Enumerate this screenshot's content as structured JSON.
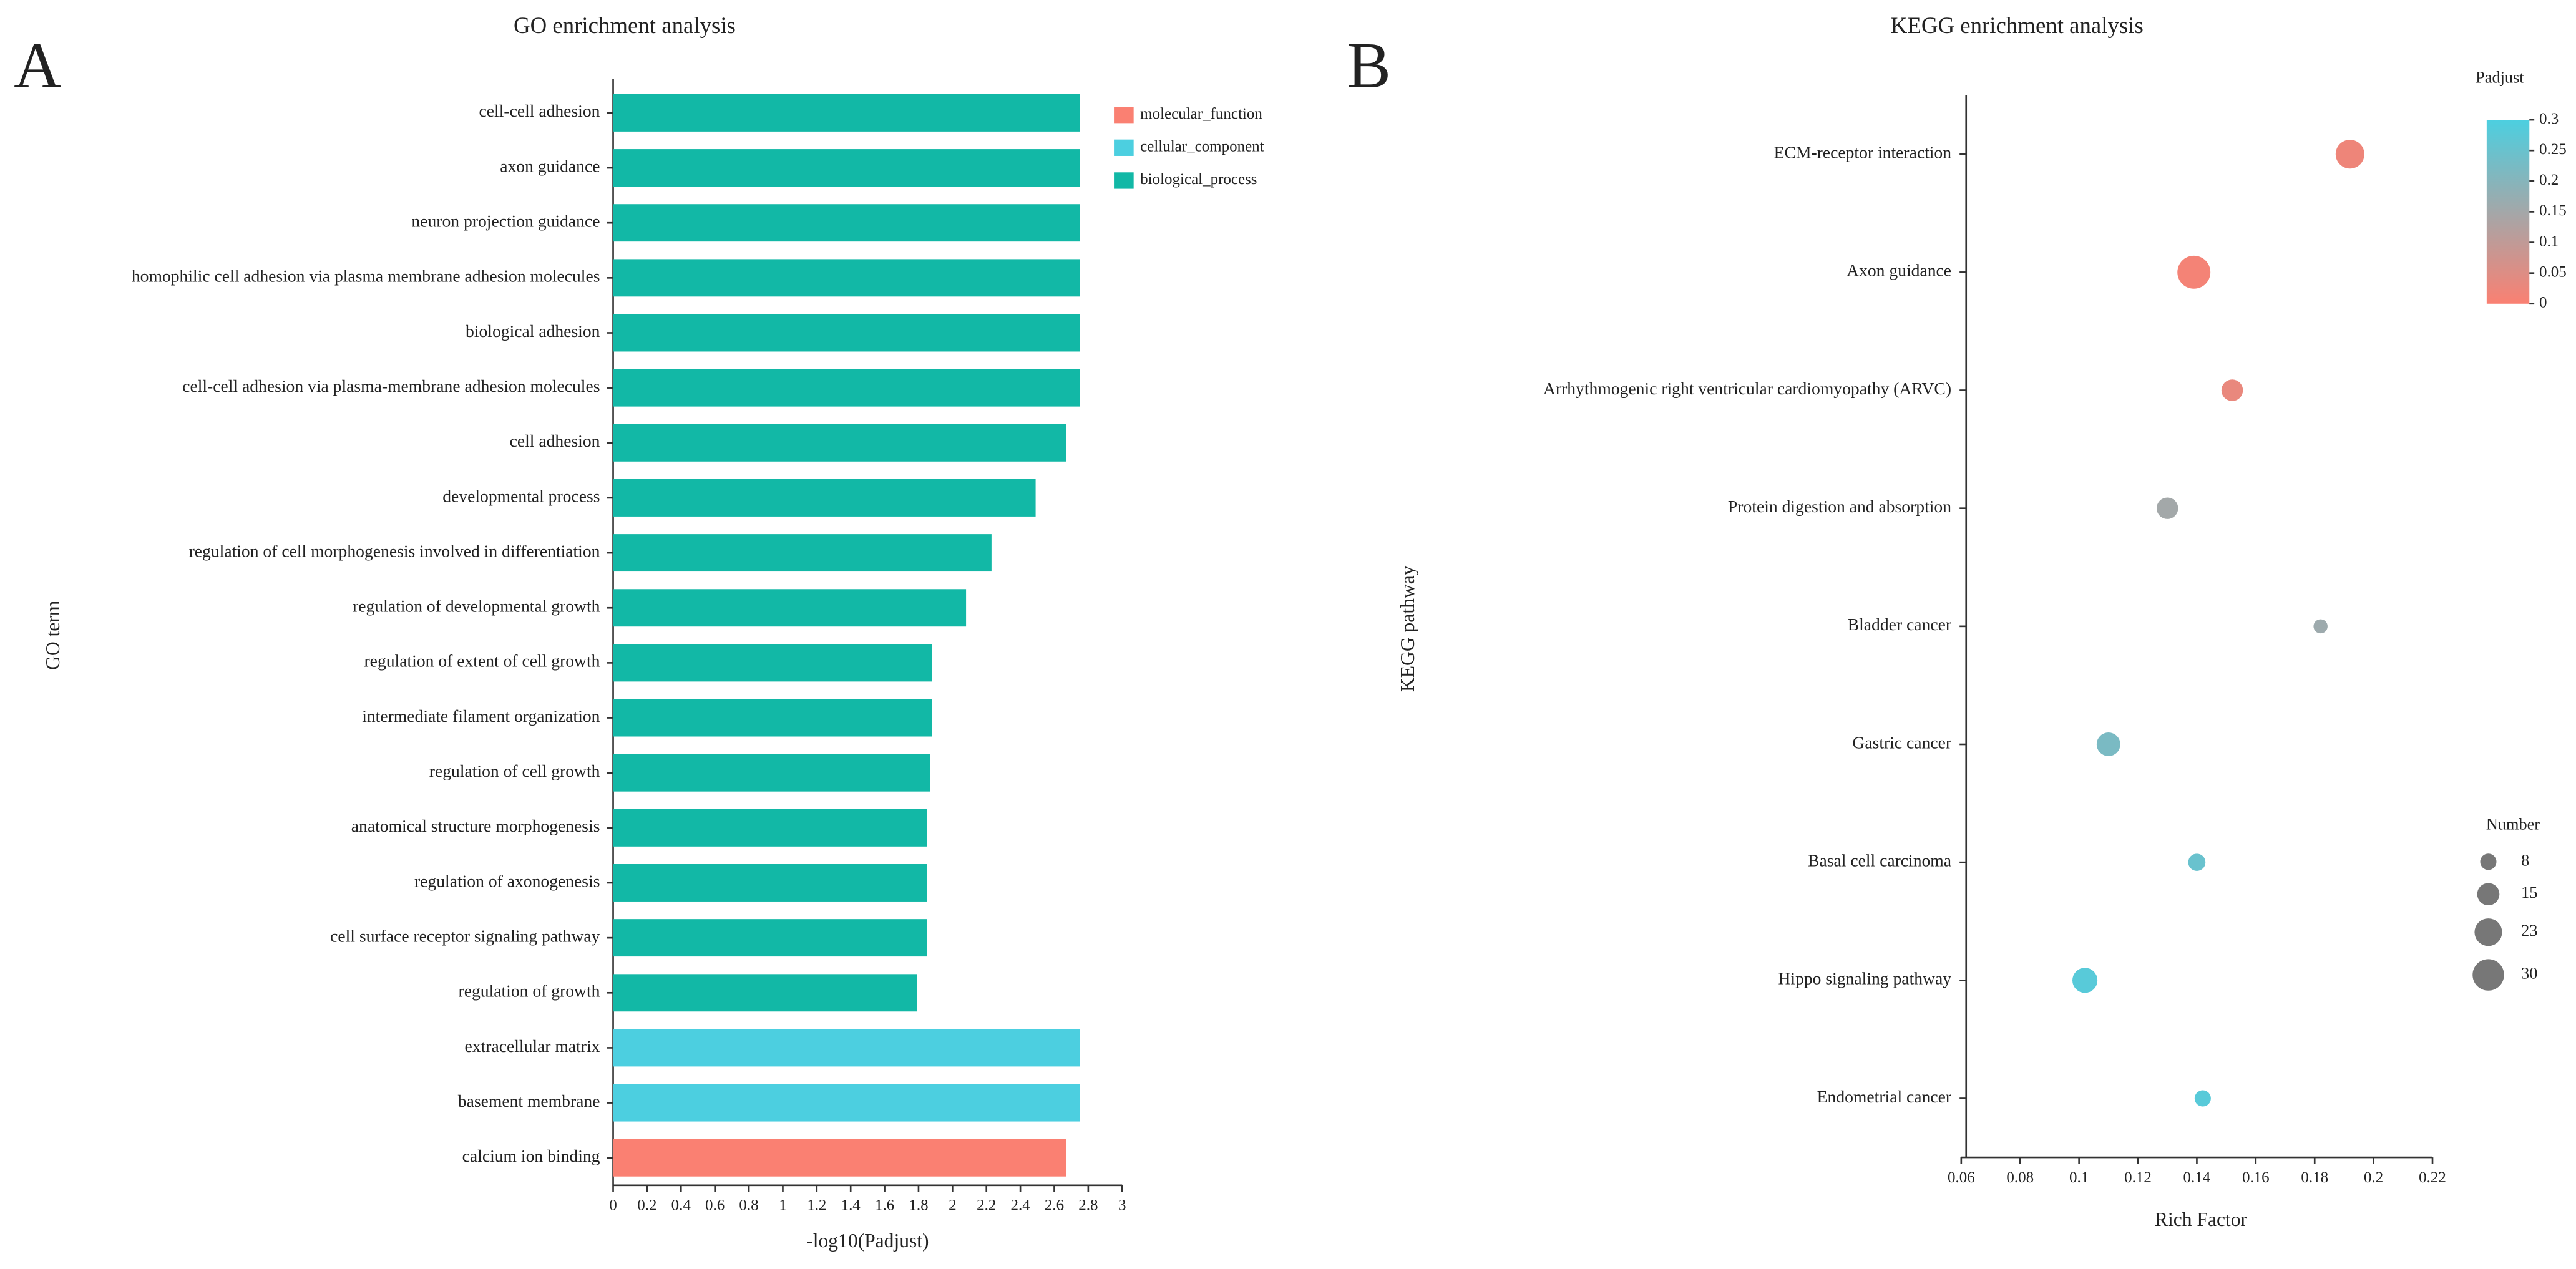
{
  "chart_data": [
    {
      "type": "bar",
      "panel_label": "A",
      "title": "GO enrichment analysis",
      "x_label": "-log10(Padjust)",
      "y_label": "GO term",
      "orientation": "horizontal",
      "categories": [
        "cell-cell adhesion",
        "axon guidance",
        "neuron projection guidance",
        "homophilic cell adhesion via plasma membrane adhesion molecules",
        "biological adhesion",
        "cell-cell adhesion via plasma-membrane adhesion molecules",
        "cell adhesion",
        "developmental process",
        "regulation of cell morphogenesis involved in differentiation",
        "regulation of developmental growth",
        "regulation of extent of cell growth",
        "intermediate filament organization",
        "regulation of cell growth",
        "anatomical structure morphogenesis",
        "regulation of axonogenesis",
        "cell surface receptor signaling pathway",
        "regulation of growth",
        "extracellular matrix",
        "basement membrane",
        "calcium ion binding"
      ],
      "series": [
        {
          "name": "molecular_function",
          "color": "#fa8072",
          "values": [
            null,
            null,
            null,
            null,
            null,
            null,
            null,
            null,
            null,
            null,
            null,
            null,
            null,
            null,
            null,
            null,
            null,
            null,
            null,
            2.67
          ]
        },
        {
          "name": "cellular_component",
          "color": "#4ccfe0",
          "values": [
            null,
            null,
            null,
            null,
            null,
            null,
            null,
            null,
            null,
            null,
            null,
            null,
            null,
            null,
            null,
            null,
            null,
            2.75,
            2.75,
            null
          ]
        },
        {
          "name": "biological_process",
          "color": "#12b8a6",
          "values": [
            2.75,
            2.75,
            2.75,
            2.75,
            2.75,
            2.75,
            2.67,
            2.49,
            2.23,
            2.08,
            1.88,
            1.88,
            1.87,
            1.85,
            1.85,
            1.85,
            1.79,
            null,
            null,
            null
          ]
        }
      ],
      "xlim": [
        0,
        3
      ],
      "xticks": [
        0,
        0.2,
        0.4,
        0.6,
        0.8,
        1,
        1.2,
        1.4,
        1.6,
        1.8,
        2,
        2.2,
        2.4,
        2.6,
        2.8,
        3
      ],
      "legend": "top-right"
    },
    {
      "type": "bubble",
      "panel_label": "B",
      "title": "KEGG enrichment analysis",
      "x_label": "Rich Factor",
      "y_label": "KEGG pathway",
      "categories": [
        "ECM-receptor interaction",
        "Axon guidance",
        "Arrhythmogenic right ventricular cardiomyopathy (ARVC)",
        "Protein digestion and absorption",
        "Bladder cancer",
        "Gastric cancer",
        "Basal cell carcinoma",
        "Hippo signaling pathway",
        "Endometrial cancer"
      ],
      "x": [
        0.192,
        0.139,
        0.152,
        0.13,
        0.182,
        0.11,
        0.14,
        0.102,
        0.142
      ],
      "sizes": [
        25,
        33,
        14,
        14,
        6,
        17,
        9,
        19,
        8
      ],
      "padjust": [
        0.02,
        0.01,
        0.03,
        0.15,
        0.16,
        0.22,
        0.25,
        0.28,
        0.28
      ],
      "xlim": [
        0.06,
        0.22
      ],
      "xticks": [
        0.06,
        0.08,
        0.1,
        0.12,
        0.14,
        0.16,
        0.18,
        0.2,
        0.22
      ],
      "color_title": "Padjust",
      "color_low": "#fa8072",
      "color_high": "#4ccfe0",
      "clim": [
        0,
        0.3
      ],
      "cticks": [
        0,
        0.05,
        0.1,
        0.15,
        0.2,
        0.25,
        0.3
      ],
      "size_title": "Number",
      "size_legend": [
        8,
        15,
        23,
        30
      ]
    }
  ]
}
